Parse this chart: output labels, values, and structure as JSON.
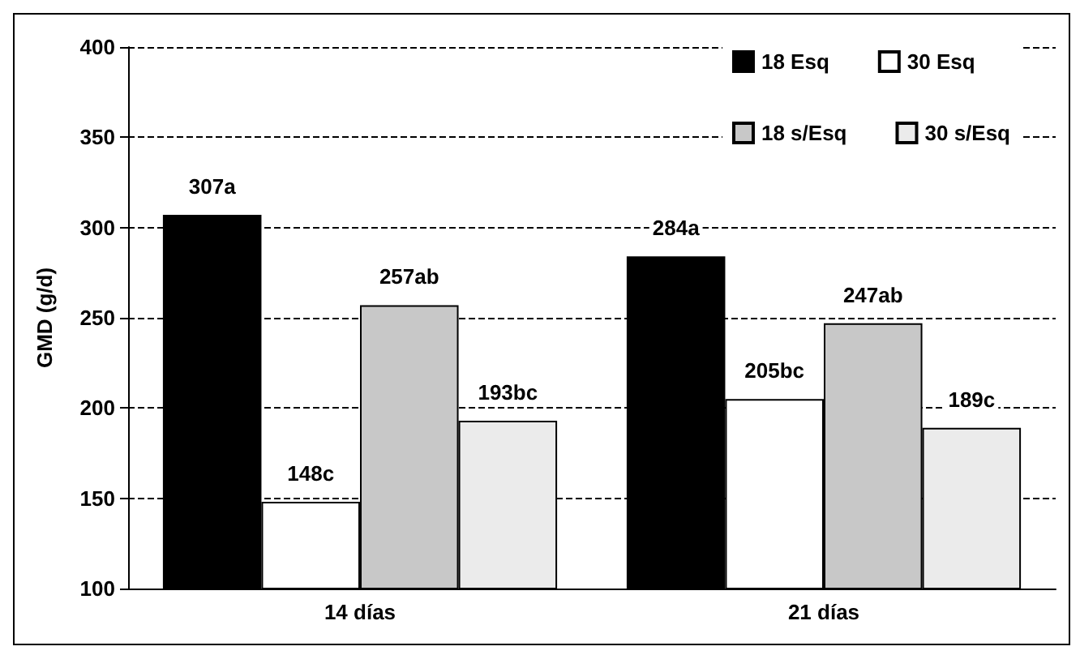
{
  "chart_data": {
    "type": "bar",
    "ylabel": "GMD (g/d)",
    "categories": [
      "14 días",
      "21 días"
    ],
    "series": [
      {
        "name": "18 Esq",
        "color": "#000000",
        "values": [
          307,
          284
        ],
        "value_labels": [
          "307a",
          "284a"
        ]
      },
      {
        "name": "30 Esq",
        "color": "#ffffff",
        "values": [
          148,
          205
        ],
        "value_labels": [
          "148c",
          "205bc"
        ]
      },
      {
        "name": "18 s/Esq",
        "color": "#c8c8c8",
        "values": [
          257,
          247
        ],
        "value_labels": [
          "257ab",
          "247ab"
        ]
      },
      {
        "name": "30 s/Esq",
        "color": "#ebebeb",
        "values": [
          193,
          189
        ],
        "value_labels": [
          "193bc",
          "189c"
        ]
      }
    ],
    "ylim": [
      100,
      400
    ],
    "yticks": [
      100,
      150,
      200,
      250,
      300,
      350,
      400
    ],
    "grid": "y",
    "legend": "top right"
  }
}
